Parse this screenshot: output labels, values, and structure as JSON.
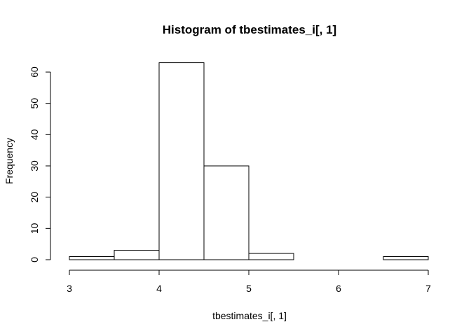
{
  "chart_data": {
    "type": "bar",
    "title": "Histogram of tbestimates_i[, 1]",
    "xlabel": "tbestimates_i[, 1]",
    "ylabel": "Frequency",
    "bin_edges": [
      3,
      3.5,
      4,
      4.5,
      5,
      5.5,
      6,
      6.5,
      7
    ],
    "values": [
      1,
      3,
      63,
      30,
      2,
      0,
      0,
      1
    ],
    "xlim": [
      3,
      7
    ],
    "ylim": [
      0,
      63
    ],
    "x_ticks": [
      3,
      4,
      5,
      6,
      7
    ],
    "y_ticks": [
      0,
      10,
      20,
      30,
      40,
      50,
      60
    ],
    "grid": false,
    "colors": {
      "bar_fill": "#ffffff",
      "bar_stroke": "#000000"
    }
  }
}
